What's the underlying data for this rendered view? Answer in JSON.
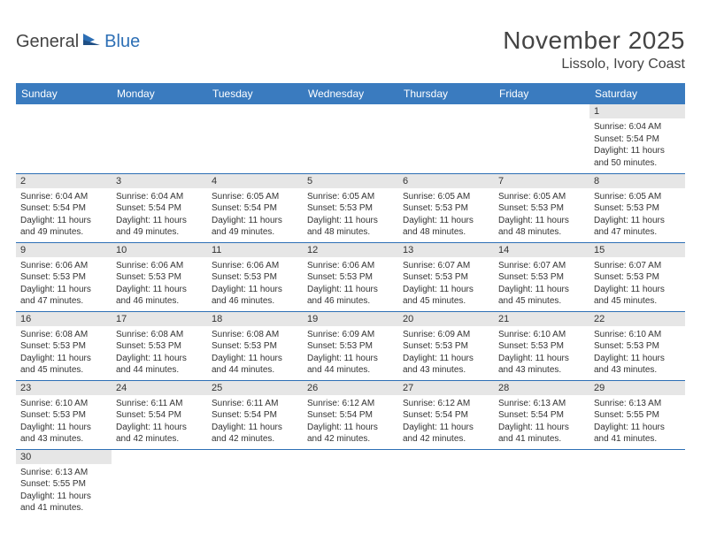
{
  "brand": {
    "part1": "General",
    "part2": "Blue"
  },
  "title": "November 2025",
  "location": "Lissolo, Ivory Coast",
  "colors": {
    "header_bg": "#3a7bbf",
    "border": "#2d6fb5",
    "daynum_bg": "#e6e6e6",
    "text": "#333333",
    "brand_blue": "#2d6fb5"
  },
  "weekdays": [
    "Sunday",
    "Monday",
    "Tuesday",
    "Wednesday",
    "Thursday",
    "Friday",
    "Saturday"
  ],
  "weeks": [
    [
      null,
      null,
      null,
      null,
      null,
      null,
      {
        "n": "1",
        "sr": "6:04 AM",
        "ss": "5:54 PM",
        "dl": "11 hours and 50 minutes."
      }
    ],
    [
      {
        "n": "2",
        "sr": "6:04 AM",
        "ss": "5:54 PM",
        "dl": "11 hours and 49 minutes."
      },
      {
        "n": "3",
        "sr": "6:04 AM",
        "ss": "5:54 PM",
        "dl": "11 hours and 49 minutes."
      },
      {
        "n": "4",
        "sr": "6:05 AM",
        "ss": "5:54 PM",
        "dl": "11 hours and 49 minutes."
      },
      {
        "n": "5",
        "sr": "6:05 AM",
        "ss": "5:53 PM",
        "dl": "11 hours and 48 minutes."
      },
      {
        "n": "6",
        "sr": "6:05 AM",
        "ss": "5:53 PM",
        "dl": "11 hours and 48 minutes."
      },
      {
        "n": "7",
        "sr": "6:05 AM",
        "ss": "5:53 PM",
        "dl": "11 hours and 48 minutes."
      },
      {
        "n": "8",
        "sr": "6:05 AM",
        "ss": "5:53 PM",
        "dl": "11 hours and 47 minutes."
      }
    ],
    [
      {
        "n": "9",
        "sr": "6:06 AM",
        "ss": "5:53 PM",
        "dl": "11 hours and 47 minutes."
      },
      {
        "n": "10",
        "sr": "6:06 AM",
        "ss": "5:53 PM",
        "dl": "11 hours and 46 minutes."
      },
      {
        "n": "11",
        "sr": "6:06 AM",
        "ss": "5:53 PM",
        "dl": "11 hours and 46 minutes."
      },
      {
        "n": "12",
        "sr": "6:06 AM",
        "ss": "5:53 PM",
        "dl": "11 hours and 46 minutes."
      },
      {
        "n": "13",
        "sr": "6:07 AM",
        "ss": "5:53 PM",
        "dl": "11 hours and 45 minutes."
      },
      {
        "n": "14",
        "sr": "6:07 AM",
        "ss": "5:53 PM",
        "dl": "11 hours and 45 minutes."
      },
      {
        "n": "15",
        "sr": "6:07 AM",
        "ss": "5:53 PM",
        "dl": "11 hours and 45 minutes."
      }
    ],
    [
      {
        "n": "16",
        "sr": "6:08 AM",
        "ss": "5:53 PM",
        "dl": "11 hours and 45 minutes."
      },
      {
        "n": "17",
        "sr": "6:08 AM",
        "ss": "5:53 PM",
        "dl": "11 hours and 44 minutes."
      },
      {
        "n": "18",
        "sr": "6:08 AM",
        "ss": "5:53 PM",
        "dl": "11 hours and 44 minutes."
      },
      {
        "n": "19",
        "sr": "6:09 AM",
        "ss": "5:53 PM",
        "dl": "11 hours and 44 minutes."
      },
      {
        "n": "20",
        "sr": "6:09 AM",
        "ss": "5:53 PM",
        "dl": "11 hours and 43 minutes."
      },
      {
        "n": "21",
        "sr": "6:10 AM",
        "ss": "5:53 PM",
        "dl": "11 hours and 43 minutes."
      },
      {
        "n": "22",
        "sr": "6:10 AM",
        "ss": "5:53 PM",
        "dl": "11 hours and 43 minutes."
      }
    ],
    [
      {
        "n": "23",
        "sr": "6:10 AM",
        "ss": "5:53 PM",
        "dl": "11 hours and 43 minutes."
      },
      {
        "n": "24",
        "sr": "6:11 AM",
        "ss": "5:54 PM",
        "dl": "11 hours and 42 minutes."
      },
      {
        "n": "25",
        "sr": "6:11 AM",
        "ss": "5:54 PM",
        "dl": "11 hours and 42 minutes."
      },
      {
        "n": "26",
        "sr": "6:12 AM",
        "ss": "5:54 PM",
        "dl": "11 hours and 42 minutes."
      },
      {
        "n": "27",
        "sr": "6:12 AM",
        "ss": "5:54 PM",
        "dl": "11 hours and 42 minutes."
      },
      {
        "n": "28",
        "sr": "6:13 AM",
        "ss": "5:54 PM",
        "dl": "11 hours and 41 minutes."
      },
      {
        "n": "29",
        "sr": "6:13 AM",
        "ss": "5:55 PM",
        "dl": "11 hours and 41 minutes."
      }
    ],
    [
      {
        "n": "30",
        "sr": "6:13 AM",
        "ss": "5:55 PM",
        "dl": "11 hours and 41 minutes."
      },
      null,
      null,
      null,
      null,
      null,
      null
    ]
  ],
  "labels": {
    "sunrise": "Sunrise:",
    "sunset": "Sunset:",
    "daylight": "Daylight:"
  }
}
